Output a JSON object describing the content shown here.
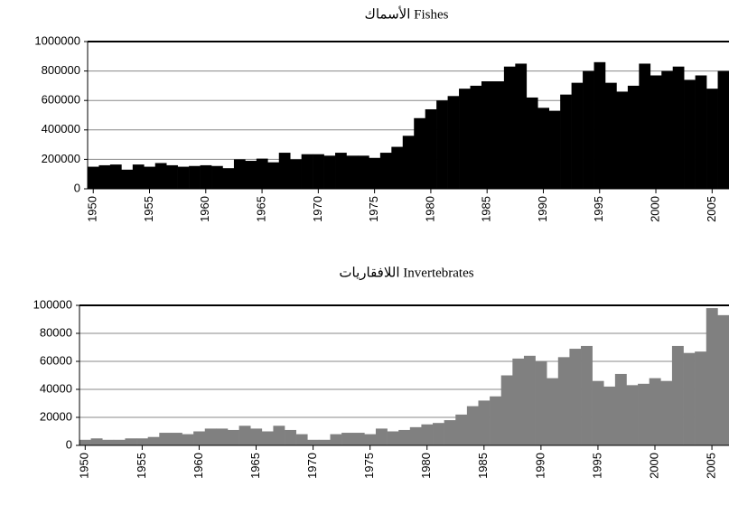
{
  "chart_data": [
    {
      "type": "bar",
      "title": "الأسماك   Fishes",
      "color": "#000000",
      "x": [
        1950,
        1951,
        1952,
        1953,
        1954,
        1955,
        1956,
        1957,
        1958,
        1959,
        1960,
        1961,
        1962,
        1963,
        1964,
        1965,
        1966,
        1967,
        1968,
        1969,
        1970,
        1971,
        1972,
        1973,
        1974,
        1975,
        1976,
        1977,
        1978,
        1979,
        1980,
        1981,
        1982,
        1983,
        1984,
        1985,
        1986,
        1987,
        1988,
        1989,
        1990,
        1991,
        1992,
        1993,
        1994,
        1995,
        1996,
        1997,
        1998,
        1999,
        2000,
        2001,
        2002,
        2003,
        2004,
        2005,
        2006
      ],
      "values": [
        150000,
        160000,
        165000,
        130000,
        165000,
        150000,
        175000,
        160000,
        150000,
        155000,
        160000,
        155000,
        140000,
        200000,
        190000,
        205000,
        180000,
        245000,
        200000,
        235000,
        235000,
        225000,
        245000,
        225000,
        225000,
        210000,
        245000,
        285000,
        360000,
        480000,
        540000,
        600000,
        630000,
        680000,
        700000,
        730000,
        730000,
        830000,
        850000,
        620000,
        550000,
        530000,
        640000,
        720000,
        800000,
        860000,
        720000,
        660000,
        700000,
        850000,
        770000,
        800000,
        830000,
        740000,
        770000,
        680000,
        800000
      ],
      "xlim": [
        1949.5,
        2006.5
      ],
      "xticks": [
        1950,
        1955,
        1960,
        1965,
        1970,
        1975,
        1980,
        1985,
        1990,
        1995,
        2000,
        2005
      ],
      "ylim": [
        0,
        1000000
      ],
      "yticks": [
        0,
        200000,
        400000,
        600000,
        800000,
        1000000
      ],
      "grid": true
    },
    {
      "type": "bar",
      "title": "اللافقاريات   Invertebrates",
      "color": "#808080",
      "x": [
        1950,
        1951,
        1952,
        1953,
        1954,
        1955,
        1956,
        1957,
        1958,
        1959,
        1960,
        1961,
        1962,
        1963,
        1964,
        1965,
        1966,
        1967,
        1968,
        1969,
        1970,
        1971,
        1972,
        1973,
        1974,
        1975,
        1976,
        1977,
        1978,
        1979,
        1980,
        1981,
        1982,
        1983,
        1984,
        1985,
        1986,
        1987,
        1988,
        1989,
        1990,
        1991,
        1992,
        1993,
        1994,
        1995,
        1996,
        1997,
        1998,
        1999,
        2000,
        2001,
        2002,
        2003,
        2004,
        2005,
        2006
      ],
      "values": [
        4000,
        5000,
        4000,
        4000,
        5000,
        5000,
        6000,
        9000,
        9000,
        8000,
        10000,
        12000,
        12000,
        11000,
        14000,
        12000,
        10000,
        14000,
        11000,
        8000,
        4000,
        4000,
        8000,
        9000,
        9000,
        8000,
        12000,
        10000,
        11000,
        13000,
        15000,
        16000,
        18000,
        22000,
        28000,
        32000,
        35000,
        50000,
        62000,
        64000,
        60000,
        48000,
        63000,
        69000,
        71000,
        46000,
        42000,
        51000,
        43000,
        44000,
        48000,
        46000,
        71000,
        66000,
        67000,
        98000,
        93000
      ],
      "xlim": [
        1949.5,
        2006.5
      ],
      "xticks": [
        1950,
        1955,
        1960,
        1965,
        1970,
        1975,
        1980,
        1985,
        1990,
        1995,
        2000,
        2005
      ],
      "ylim": [
        0,
        100000
      ],
      "yticks": [
        0,
        20000,
        40000,
        60000,
        80000,
        100000
      ],
      "grid": true
    }
  ]
}
